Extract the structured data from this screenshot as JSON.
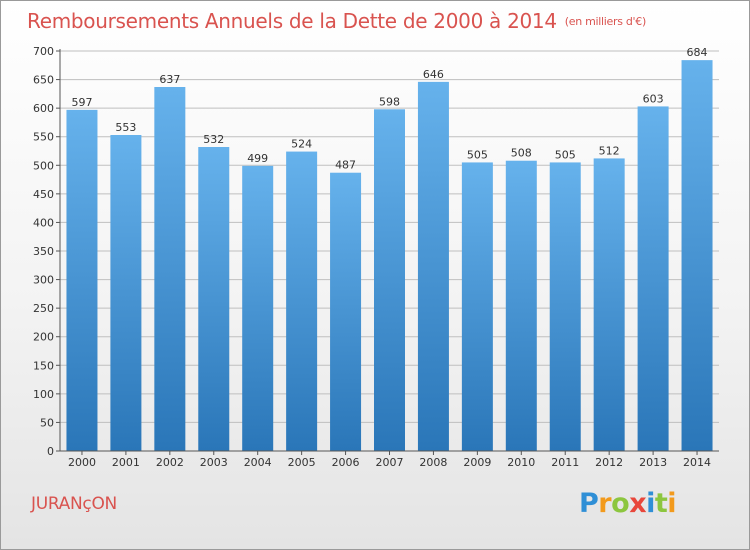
{
  "title": "Remboursements Annuels de la Dette de 2000 à 2014",
  "unit": "(en milliers d'€)",
  "commune": "JURANçON",
  "logo": {
    "letters": [
      "P",
      "r",
      "o",
      "x",
      "i",
      "t",
      "i"
    ],
    "colors": [
      "#2f8fd6",
      "#f29a1c",
      "#8cc63f",
      "#e8473b",
      "#2f8fd6",
      "#8cc63f",
      "#f29a1c"
    ]
  },
  "colors": {
    "bar": "#3e94d8",
    "bar_light": "#66b2ec",
    "bar_dark": "#2a76b8",
    "title": "#d9534f",
    "grid": "#bfbfbf"
  },
  "chart_data": {
    "type": "bar",
    "categories": [
      "2000",
      "2001",
      "2002",
      "2003",
      "2004",
      "2005",
      "2006",
      "2007",
      "2008",
      "2009",
      "2010",
      "2011",
      "2012",
      "2013",
      "2014"
    ],
    "values": [
      597,
      553,
      637,
      532,
      499,
      524,
      487,
      598,
      646,
      505,
      508,
      505,
      512,
      603,
      684
    ],
    "ylim": [
      0,
      700
    ],
    "yticks": [
      0,
      50,
      100,
      150,
      200,
      250,
      300,
      350,
      400,
      450,
      500,
      550,
      600,
      650,
      700
    ],
    "grid": true
  }
}
